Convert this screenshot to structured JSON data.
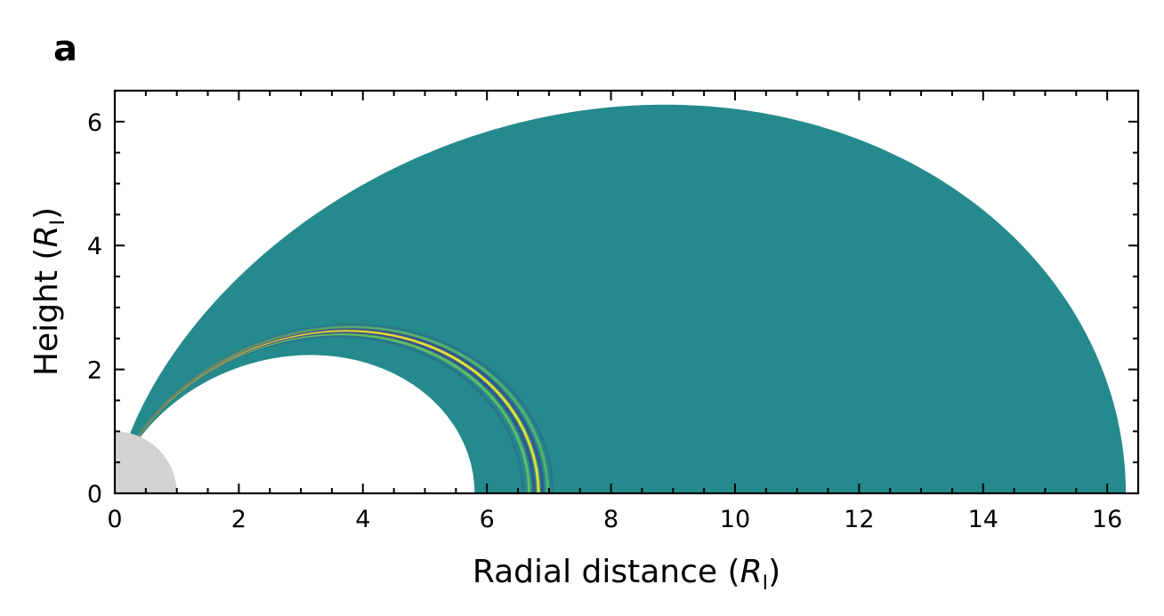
{
  "panel_label": "a",
  "chart_data": {
    "type": "heatmap",
    "title": "",
    "xlabel": "Radial distance",
    "ylabel": "Height",
    "unit_symbol": "R",
    "unit_subscript": "I",
    "xlim": [
      0,
      16.5
    ],
    "ylim": [
      0,
      6.5
    ],
    "xticks": [
      0,
      2,
      4,
      6,
      8,
      10,
      12,
      14,
      16
    ],
    "yticks": [
      0,
      2,
      4,
      6
    ],
    "grid": false,
    "colors": {
      "field_background": "#248a8d",
      "planet_disk": "#d3d3d3",
      "wave_dark": "#3b4a8c",
      "wave_light": "#7ed34f",
      "wave_bright": "#fde725"
    },
    "planet_radius": 1.0,
    "outer_field_line_L": 16.3,
    "inner_field_line_L": 5.8,
    "wave_packet": {
      "L_center": 6.8,
      "peak_height": 2.7,
      "band_width_L": 0.5
    }
  }
}
